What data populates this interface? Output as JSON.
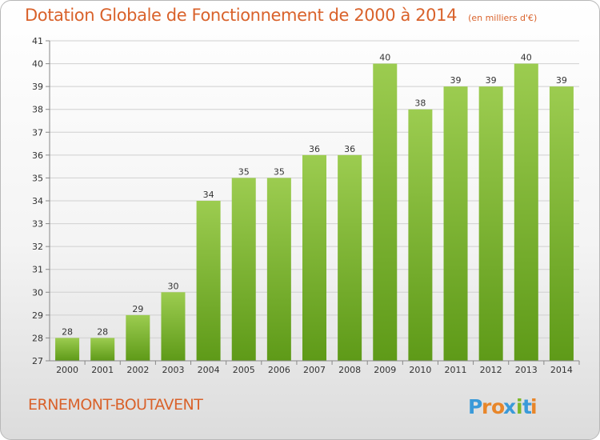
{
  "title": "Dotation Globale de Fonctionnement de 2000 à 2014",
  "unit": "(en milliers d'€)",
  "commune": "ERNEMONT-BOUTAVENT",
  "logo": {
    "text": "Proxiti",
    "colors": [
      "#3a9ad9",
      "#e8862a",
      "#e8862a",
      "#3a9ad9",
      "#7cb829",
      "#3a9ad9",
      "#e8862a"
    ]
  },
  "colors": {
    "accent": "#d9622b",
    "bar_top": "#9ccc50",
    "bar_bottom": "#5e9a18"
  },
  "chart_data": {
    "type": "bar",
    "title": "Dotation Globale de Fonctionnement de 2000 à 2014",
    "subtitle": "(en milliers d'€)",
    "categories": [
      "2000",
      "2001",
      "2002",
      "2003",
      "2004",
      "2005",
      "2006",
      "2007",
      "2008",
      "2009",
      "2010",
      "2011",
      "2012",
      "2013",
      "2014"
    ],
    "values": [
      28,
      28,
      29,
      30,
      34,
      35,
      35,
      36,
      36,
      40,
      38,
      39,
      39,
      40,
      39
    ],
    "ylim": [
      27,
      41
    ],
    "yticks": [
      27,
      28,
      29,
      30,
      31,
      32,
      33,
      34,
      35,
      36,
      37,
      38,
      39,
      40,
      41
    ],
    "grid": true,
    "data_labels": true
  }
}
